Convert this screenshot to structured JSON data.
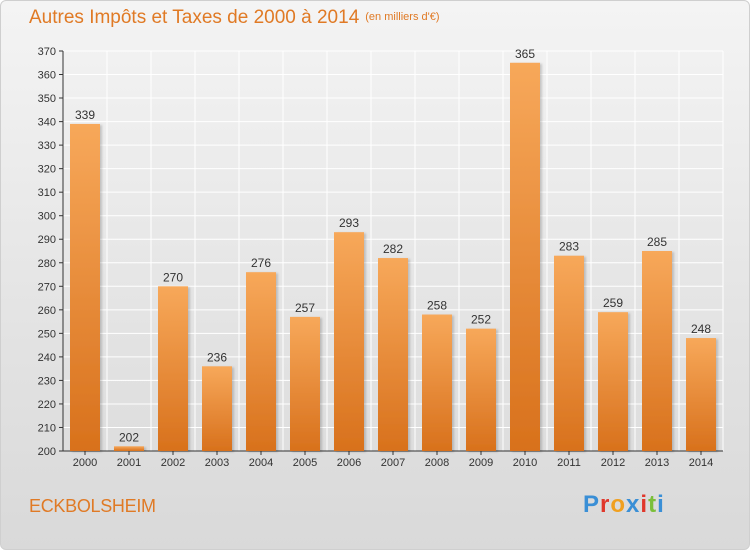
{
  "header": {
    "title": "Autres Impôts et Taxes de 2000 à 2014",
    "unit": "(en milliers d'€)"
  },
  "footer": {
    "commune": "ECKBOLSHEIM",
    "logo_text": "Proxiti",
    "logo_colors": [
      "#3a8fd6",
      "#e0372b",
      "#f0a020",
      "#3a8fd6",
      "#e0372b",
      "#7bbf3a",
      "#3a8fd6"
    ]
  },
  "colors": {
    "bar_top": "#f7a85a",
    "bar_bottom": "#d8711c",
    "accent": "#e07a25",
    "grid": "#ffffff",
    "axis": "#333333"
  },
  "chart_data": {
    "type": "bar",
    "title": "Autres Impôts et Taxes de 2000 à 2014",
    "subtitle": "(en milliers d'€)",
    "xlabel": "",
    "ylabel": "",
    "categories": [
      "2000",
      "2001",
      "2002",
      "2003",
      "2004",
      "2005",
      "2006",
      "2007",
      "2008",
      "2009",
      "2010",
      "2011",
      "2012",
      "2013",
      "2014"
    ],
    "values": [
      339,
      202,
      270,
      236,
      276,
      257,
      293,
      282,
      258,
      252,
      365,
      283,
      259,
      285,
      248
    ],
    "ylim": [
      200,
      370
    ],
    "yticks": [
      200,
      210,
      220,
      230,
      240,
      250,
      260,
      270,
      280,
      290,
      300,
      310,
      320,
      330,
      340,
      350,
      360,
      370
    ],
    "grid": true,
    "legend": "none"
  }
}
